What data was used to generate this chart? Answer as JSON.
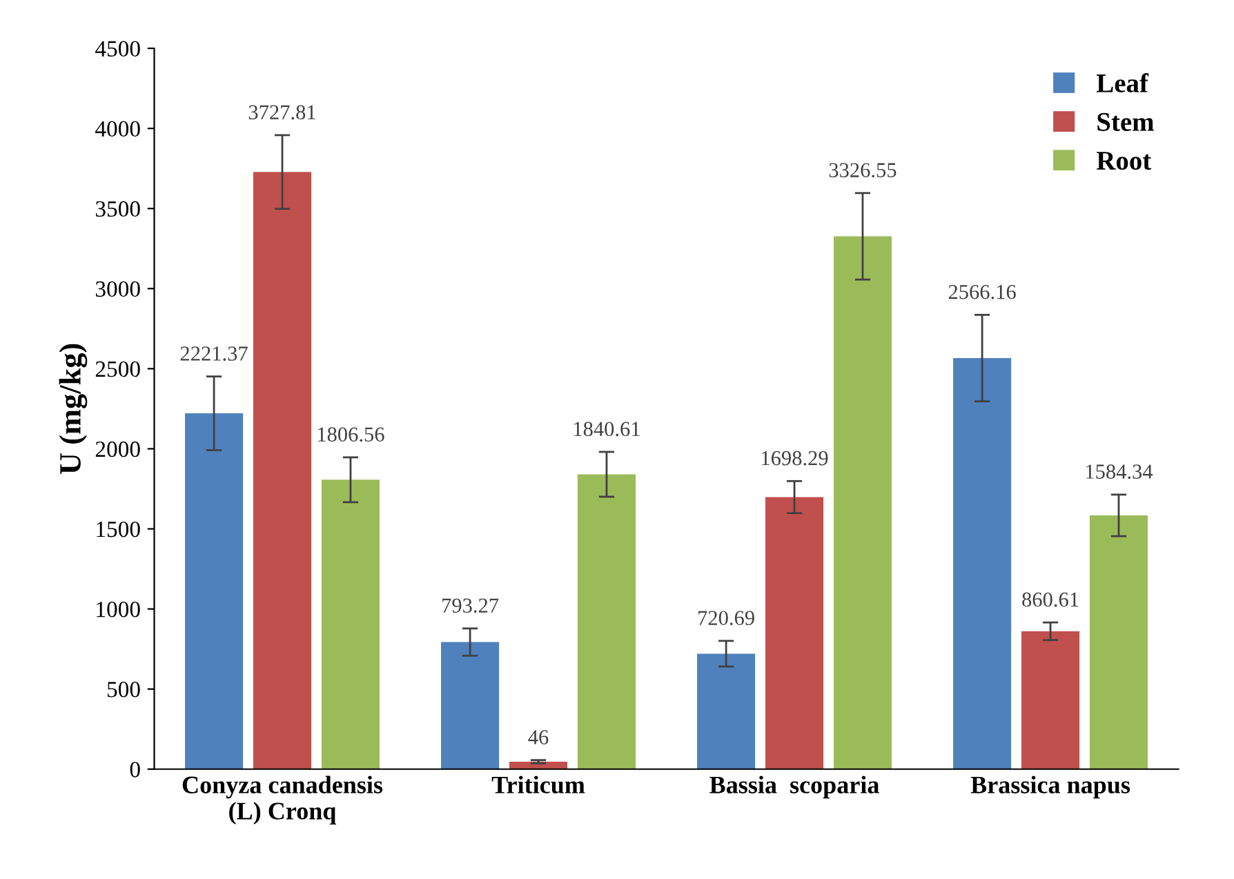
{
  "chart_data": {
    "type": "bar",
    "ylabel": "U (mg/kg)",
    "categories": [
      "Conyza canadensis\n(L) Cronq",
      "Triticum",
      "Bassia  scoparia",
      "Brassica napus"
    ],
    "series": [
      {
        "name": "Leaf",
        "color": "#4f81bd",
        "values": [
          2221.37,
          793.27,
          720.69,
          2566.16
        ],
        "errors": [
          230,
          85,
          80,
          270
        ]
      },
      {
        "name": "Stem",
        "color": "#c0504d",
        "values": [
          3727.81,
          46,
          1698.29,
          860.61
        ],
        "errors": [
          230,
          10,
          100,
          55
        ]
      },
      {
        "name": "Root",
        "color": "#9bbb59",
        "values": [
          1806.56,
          1840.61,
          3326.55,
          1584.34
        ],
        "errors": [
          140,
          140,
          270,
          130
        ]
      }
    ],
    "ylim": [
      0,
      4500
    ],
    "yticks": [
      0,
      500,
      1000,
      1500,
      2000,
      2500,
      3000,
      3500,
      4000,
      4500
    ],
    "data_labels": true,
    "legend": "top right",
    "grid": false
  }
}
